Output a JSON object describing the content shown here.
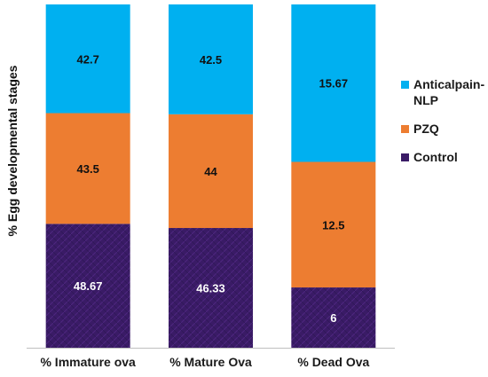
{
  "chart_data": {
    "type": "bar",
    "stacked": true,
    "categories": [
      "% Immature ova",
      "% Mature Ova",
      "% Dead Ova"
    ],
    "series": [
      {
        "name": "Control",
        "values": [
          48.67,
          46.33,
          6
        ],
        "color": "#3a1b66",
        "label_color": "#ffffff"
      },
      {
        "name": "PZQ",
        "values": [
          43.5,
          44,
          12.5
        ],
        "color": "#ed7d31",
        "label_color": "#111111"
      },
      {
        "name": "Anticalpain-NLP",
        "values": [
          42.7,
          42.5,
          15.67
        ],
        "color": "#00b0f0",
        "label_color": "#111111"
      }
    ],
    "ylabel": "% Egg developmental stages",
    "legend_position": "right",
    "grid": false
  }
}
